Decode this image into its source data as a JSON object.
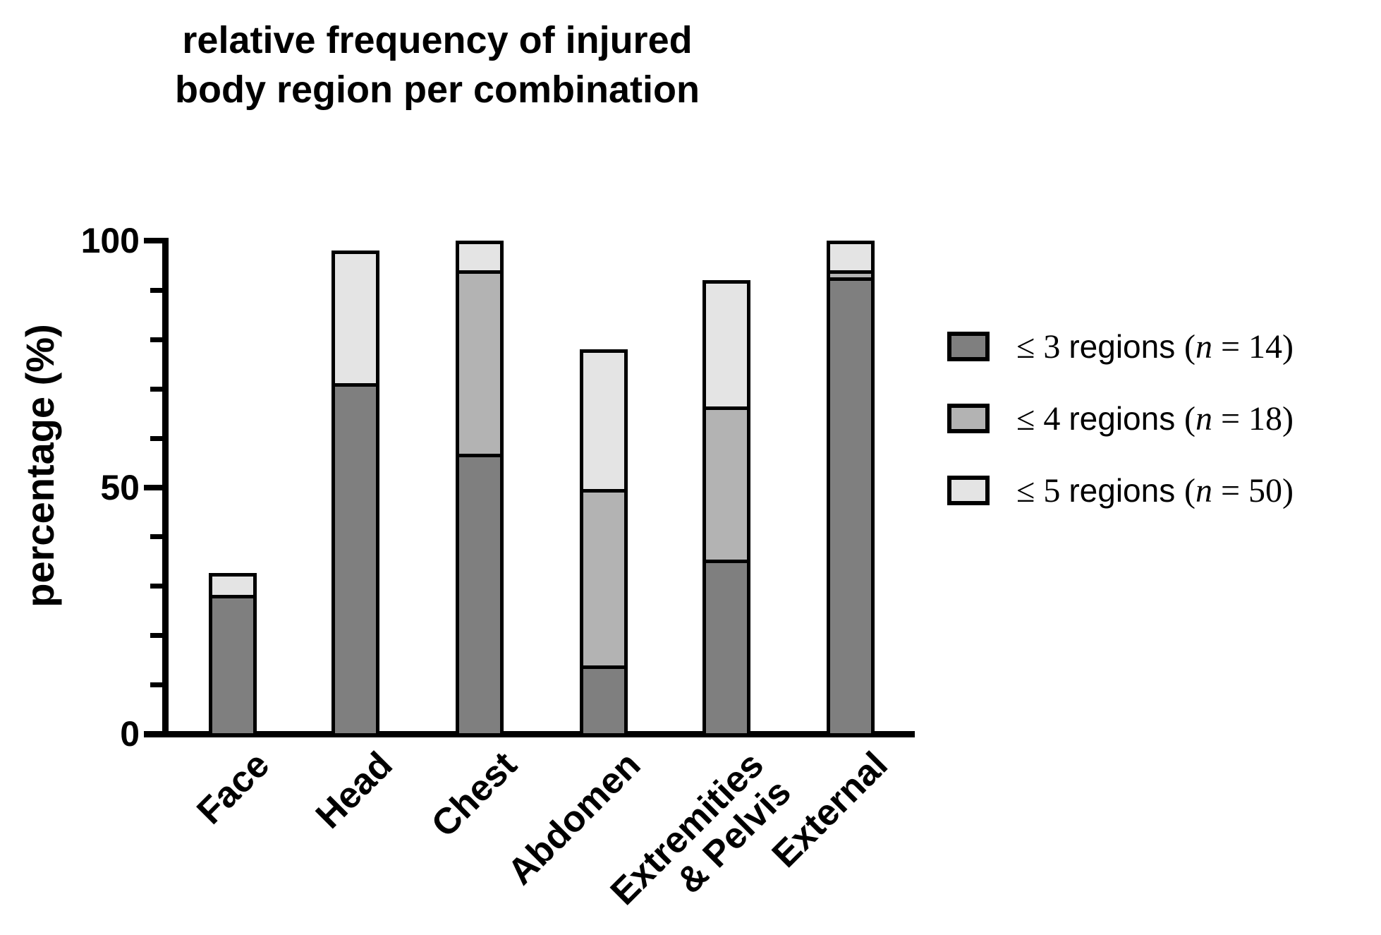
{
  "page": {
    "background": "#ffffff",
    "text_color": "#000000"
  },
  "title": {
    "line1": "relative frequency of injured",
    "line2": "body region per combination"
  },
  "axes": {
    "y_label": "percentage (%)"
  },
  "chart_data": {
    "type": "bar",
    "stacked": true,
    "title": "relative frequency of injured body region per combination",
    "ylabel": "percentage (%)",
    "xlabel": "",
    "ylim": [
      0,
      100
    ],
    "yticks_major": [
      100,
      50,
      0
    ],
    "yticks_minor": [
      90,
      80,
      70,
      60,
      40,
      30,
      20,
      10
    ],
    "grid": false,
    "legend_position": "right-of-plot",
    "categories": [
      "Face",
      "Head",
      "Chest",
      "Abdomen",
      "Extremities\n& Pelvis",
      "External"
    ],
    "series": [
      {
        "name": "≤ 3 regions (n = 14)",
        "color": "#7f7f7f",
        "values": [
          28.6,
          71.4,
          57.1,
          14.3,
          35.7,
          92.9
        ]
      },
      {
        "name": "≤ 4 regions (n = 18)",
        "color": "#b3b3b3",
        "values": [
          0,
          0,
          37.3,
          35.7,
          31.0,
          1.5
        ]
      },
      {
        "name": "≤ 5 regions (n = 50)",
        "color": "#e4e4e4",
        "values": [
          4.0,
          26.6,
          5.6,
          28.0,
          25.3,
          5.6
        ]
      }
    ],
    "bar_totals": [
      32.6,
      98,
      100,
      78,
      92,
      100
    ],
    "outline_color": "#000000"
  },
  "legend": {
    "items": [
      {
        "threshold": "≤ 3 ",
        "word": "regions ",
        "n_open": "(",
        "n_symbol": "n",
        "n_rest": " = 14)"
      },
      {
        "threshold": "≤ 4 ",
        "word": "regions ",
        "n_open": "(",
        "n_symbol": "n",
        "n_rest": " = 18)"
      },
      {
        "threshold": "≤ 5 ",
        "word": "regions ",
        "n_open": "(",
        "n_symbol": "n",
        "n_rest": " = 50)"
      }
    ]
  }
}
